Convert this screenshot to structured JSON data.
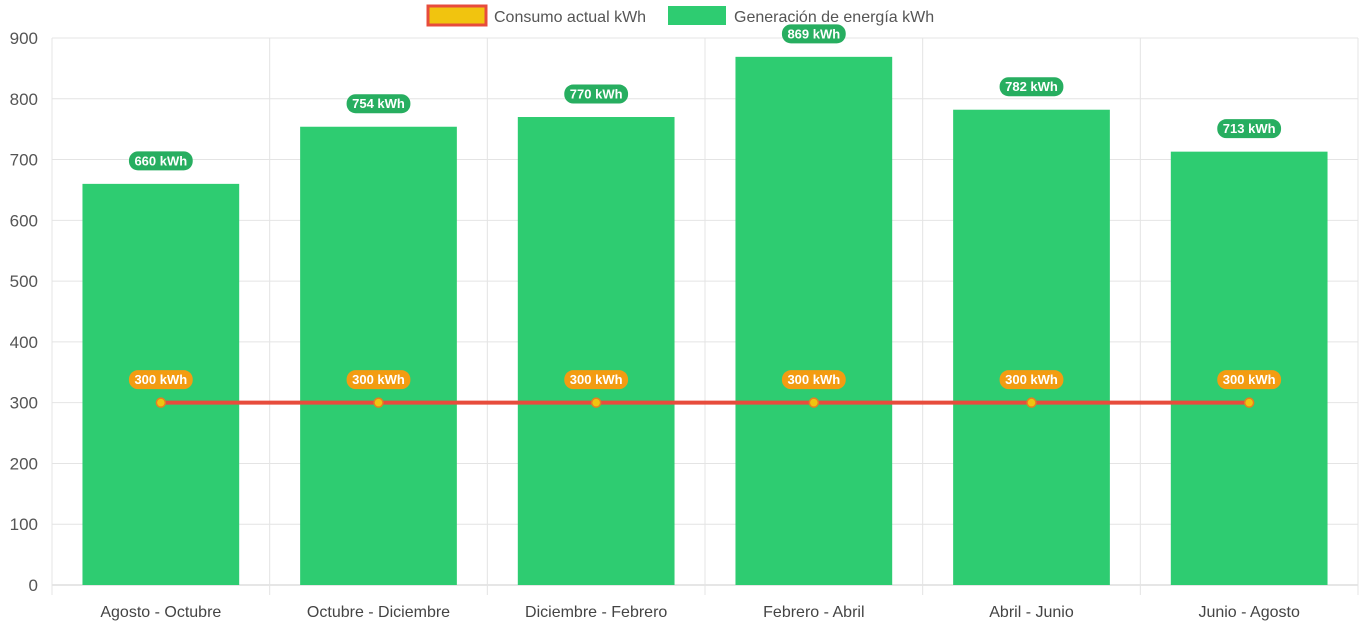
{
  "chart_data": {
    "type": "bar",
    "categories": [
      "Agosto - Octubre",
      "Octubre - Diciembre",
      "Diciembre - Febrero",
      "Febrero - Abril",
      "Abril - Junio",
      "Junio - Agosto"
    ],
    "series": [
      {
        "name": "Consumo actual kWh",
        "type": "line",
        "values": [
          300,
          300,
          300,
          300,
          300,
          300
        ],
        "labels": [
          "300 kWh",
          "300 kWh",
          "300 kWh",
          "300 kWh",
          "300 kWh",
          "300 kWh"
        ],
        "line_color": "#e74c3c",
        "point_color": "#f1c40f",
        "label_color": "#f39c12"
      },
      {
        "name": "Generación de energía kWh",
        "type": "bar",
        "values": [
          660,
          754,
          770,
          869,
          782,
          713
        ],
        "labels": [
          "660 kWh",
          "754 kWh",
          "770 kWh",
          "869 kWh",
          "782 kWh",
          "713 kWh"
        ],
        "bar_color": "#2ecc71",
        "label_color": "#27ae60"
      }
    ],
    "y_ticks": [
      "0",
      "100",
      "200",
      "300",
      "400",
      "500",
      "600",
      "700",
      "800",
      "900"
    ],
    "ylim": [
      0,
      900
    ],
    "grid": true,
    "legend_position": "top"
  }
}
